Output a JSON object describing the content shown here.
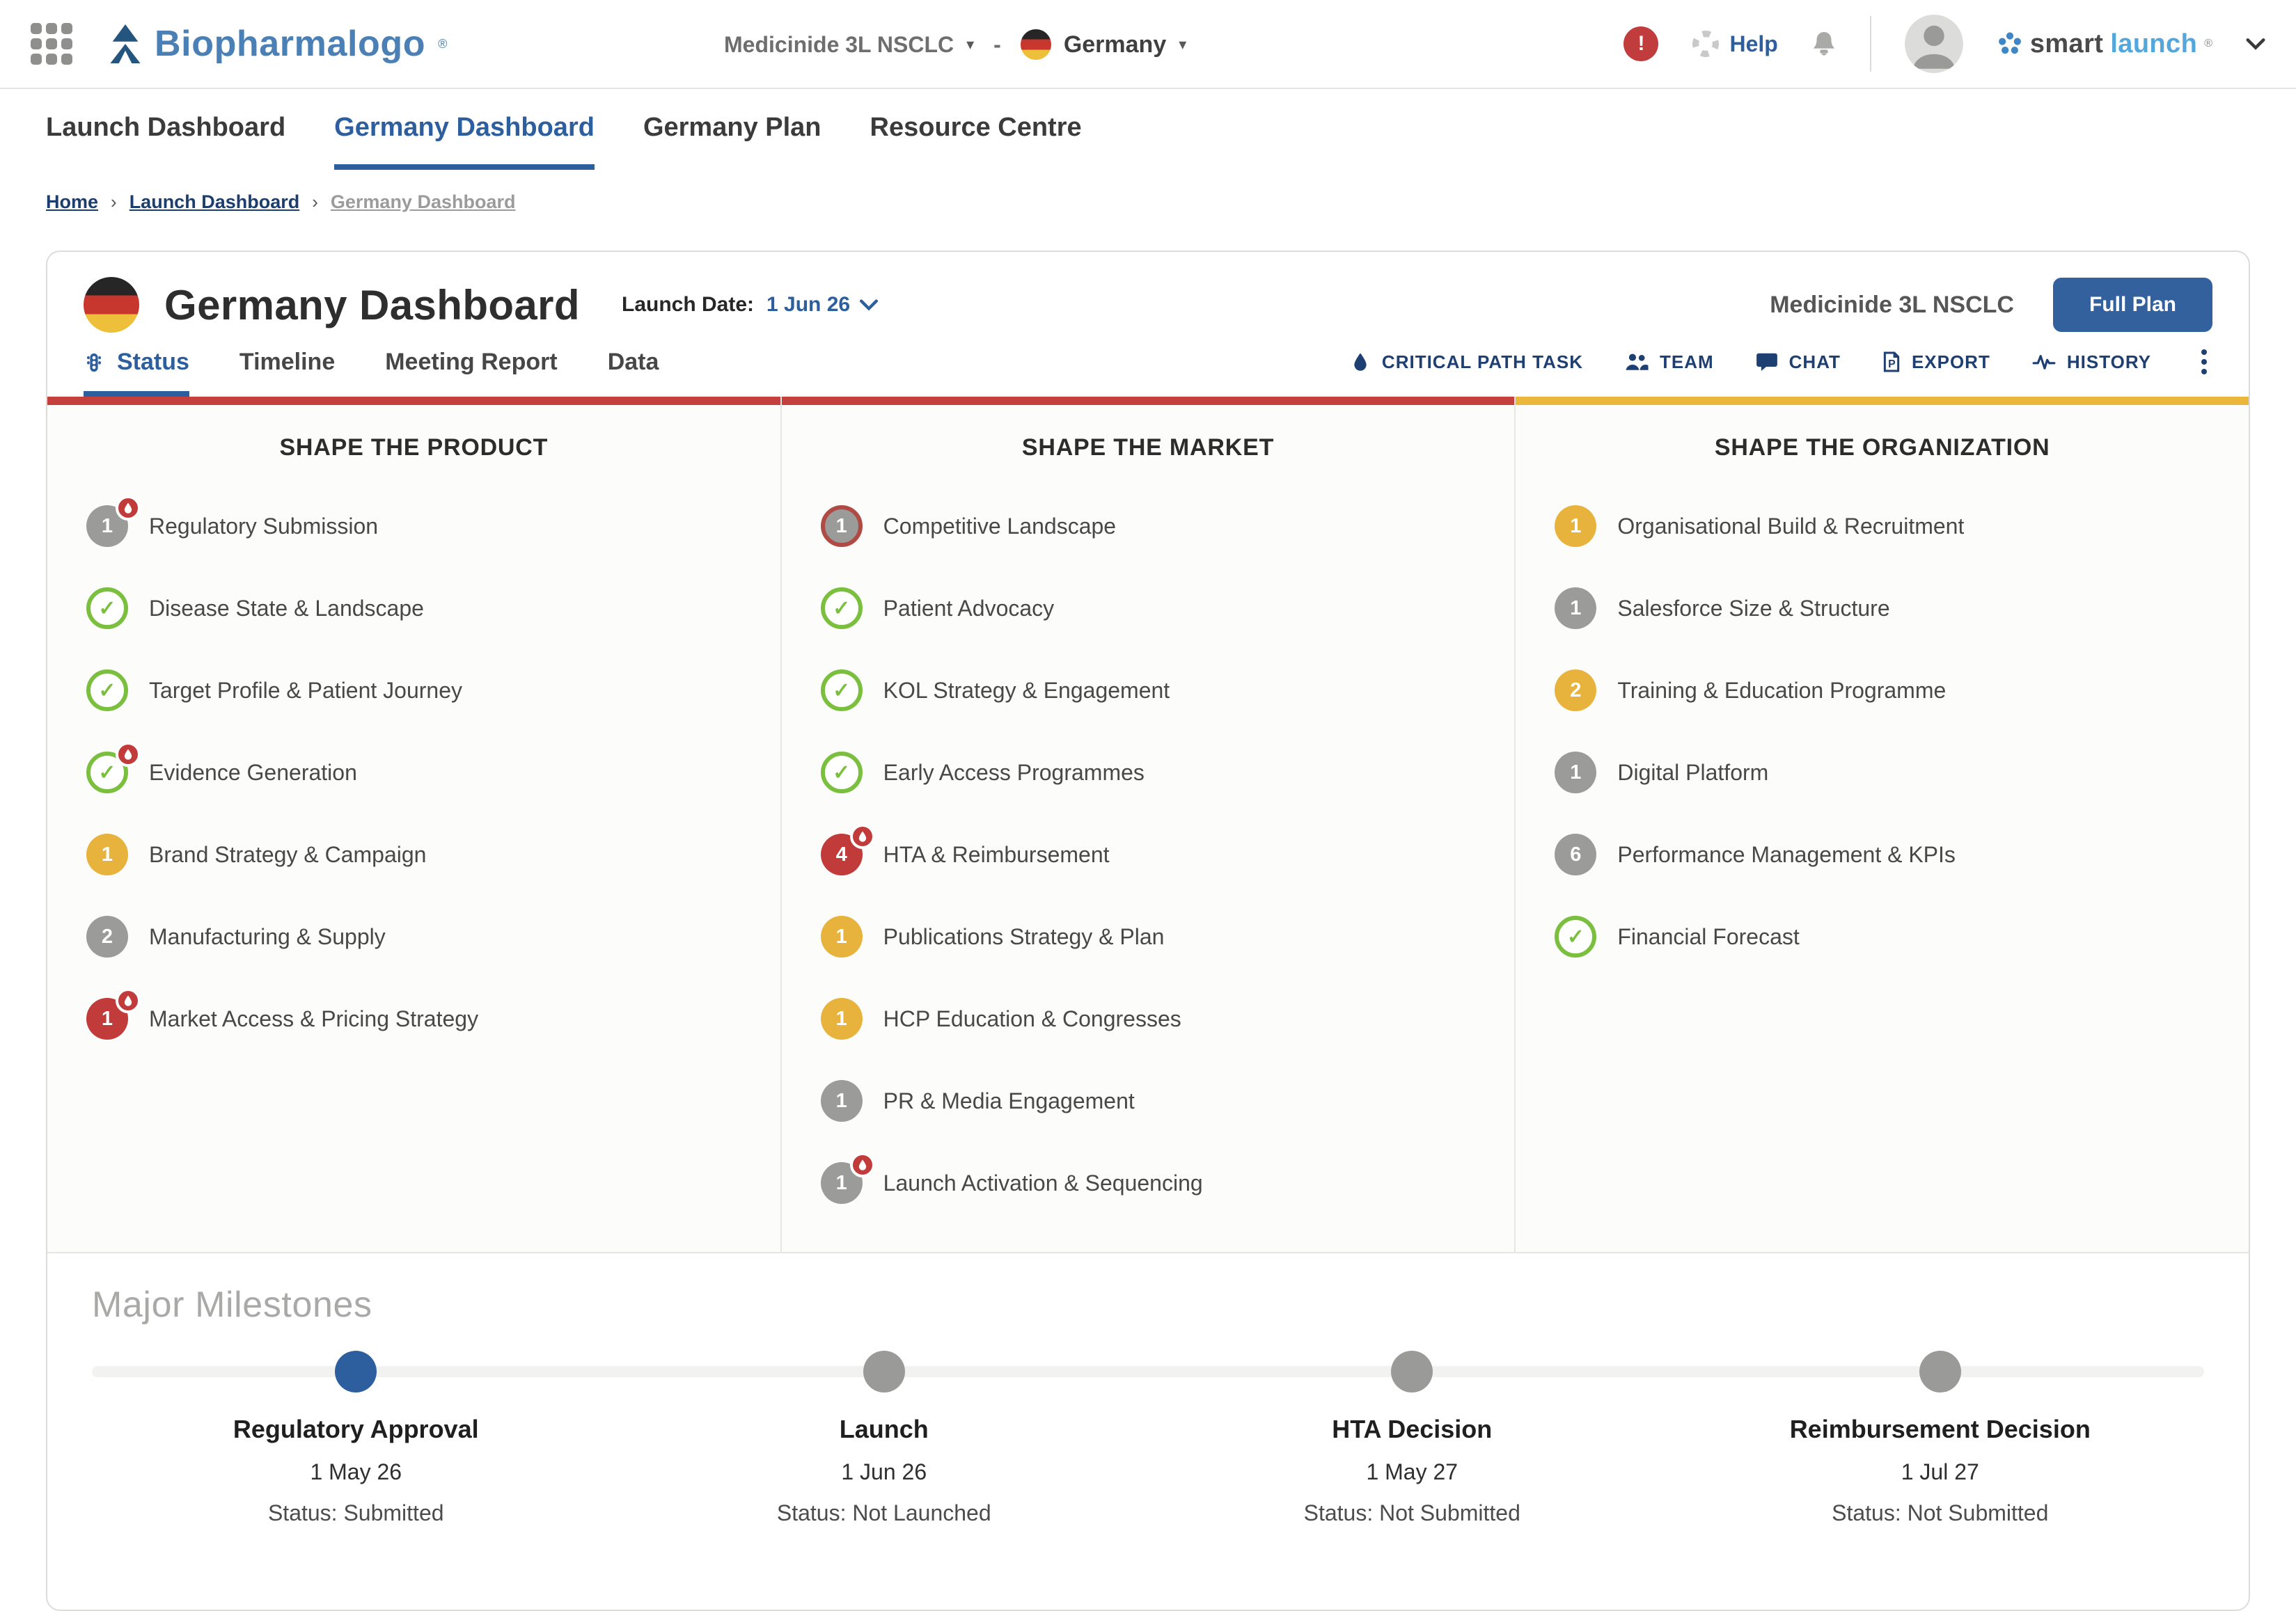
{
  "header": {
    "brand": "Biopharmalogo",
    "brand_registered": "®",
    "product_selector": "Medicinide 3L NSCLC",
    "separator": "-",
    "country_selector": "Germany",
    "help_label": "Help",
    "smartlaunch": {
      "smart": "smart",
      "launch": "launch",
      "registered": "®"
    }
  },
  "nav": {
    "tabs": [
      {
        "label": "Launch Dashboard",
        "active": false
      },
      {
        "label": "Germany Dashboard",
        "active": true
      },
      {
        "label": "Germany Plan",
        "active": false
      },
      {
        "label": "Resource Centre",
        "active": false
      }
    ]
  },
  "breadcrumb": {
    "separator": "›",
    "items": [
      {
        "label": "Home",
        "current": false
      },
      {
        "label": "Launch Dashboard",
        "current": false
      },
      {
        "label": "Germany Dashboard",
        "current": true
      }
    ]
  },
  "dashboard": {
    "title": "Germany Dashboard",
    "launch_date_label": "Launch Date:",
    "launch_date_value": "1 Jun 26",
    "product_name": "Medicinide 3L NSCLC",
    "full_plan_button": "Full Plan",
    "tabs": [
      {
        "label": "Status",
        "active": true,
        "icon": "traffic-light"
      },
      {
        "label": "Timeline",
        "active": false
      },
      {
        "label": "Meeting Report",
        "active": false
      },
      {
        "label": "Data",
        "active": false
      }
    ],
    "actions": [
      {
        "label": "CRITICAL PATH TASK",
        "icon": "flame"
      },
      {
        "label": "TEAM",
        "icon": "team"
      },
      {
        "label": "CHAT",
        "icon": "chat"
      },
      {
        "label": "EXPORT",
        "icon": "export"
      },
      {
        "label": "HISTORY",
        "icon": "history"
      }
    ]
  },
  "columns": [
    {
      "title": "SHAPE THE PRODUCT",
      "accent": "#c4403c",
      "items": [
        {
          "label": "Regulatory Submission",
          "badge": {
            "type": "count",
            "value": "1",
            "color": "gray",
            "critical": true
          }
        },
        {
          "label": "Disease State & Landscape",
          "badge": {
            "type": "check"
          }
        },
        {
          "label": "Target Profile & Patient Journey",
          "badge": {
            "type": "check"
          }
        },
        {
          "label": "Evidence Generation",
          "badge": {
            "type": "check",
            "critical": true
          }
        },
        {
          "label": "Brand Strategy & Campaign",
          "badge": {
            "type": "count",
            "value": "1",
            "color": "yellow"
          }
        },
        {
          "label": "Manufacturing & Supply",
          "badge": {
            "type": "count",
            "value": "2",
            "color": "gray"
          }
        },
        {
          "label": "Market Access & Pricing Strategy",
          "badge": {
            "type": "count",
            "value": "1",
            "color": "red",
            "critical": true
          }
        }
      ]
    },
    {
      "title": "SHAPE THE MARKET",
      "accent": "#c4403c",
      "items": [
        {
          "label": "Competitive Landscape",
          "badge": {
            "type": "count",
            "value": "1",
            "color": "gray",
            "ring": "red"
          }
        },
        {
          "label": "Patient Advocacy",
          "badge": {
            "type": "check"
          }
        },
        {
          "label": "KOL Strategy & Engagement",
          "badge": {
            "type": "check"
          }
        },
        {
          "label": "Early Access Programmes",
          "badge": {
            "type": "check"
          }
        },
        {
          "label": "HTA & Reimbursement",
          "badge": {
            "type": "count",
            "value": "4",
            "color": "red",
            "critical": true
          }
        },
        {
          "label": "Publications Strategy & Plan",
          "badge": {
            "type": "count",
            "value": "1",
            "color": "yellow"
          }
        },
        {
          "label": "HCP Education & Congresses",
          "badge": {
            "type": "count",
            "value": "1",
            "color": "yellow"
          }
        },
        {
          "label": "PR & Media Engagement",
          "badge": {
            "type": "count",
            "value": "1",
            "color": "gray"
          }
        },
        {
          "label": "Launch Activation & Sequencing",
          "badge": {
            "type": "count",
            "value": "1",
            "color": "gray",
            "critical": true
          }
        }
      ]
    },
    {
      "title": "SHAPE THE ORGANIZATION",
      "accent": "#eab63b",
      "items": [
        {
          "label": "Organisational Build & Recruitment",
          "badge": {
            "type": "count",
            "value": "1",
            "color": "yellow"
          }
        },
        {
          "label": "Salesforce Size & Structure",
          "badge": {
            "type": "count",
            "value": "1",
            "color": "gray"
          }
        },
        {
          "label": "Training & Education Programme",
          "badge": {
            "type": "count",
            "value": "2",
            "color": "yellow"
          }
        },
        {
          "label": "Digital Platform",
          "badge": {
            "type": "count",
            "value": "1",
            "color": "gray"
          }
        },
        {
          "label": "Performance Management & KPIs",
          "badge": {
            "type": "count",
            "value": "6",
            "color": "gray"
          }
        },
        {
          "label": "Financial Forecast",
          "badge": {
            "type": "check"
          }
        }
      ]
    }
  ],
  "milestones": {
    "title": "Major Milestones",
    "items": [
      {
        "name": "Regulatory Approval",
        "date": "1 May 26",
        "status": "Status: Submitted",
        "dot": "blue"
      },
      {
        "name": "Launch",
        "date": "1 Jun 26",
        "status": "Status: Not Launched",
        "dot": "gray"
      },
      {
        "name": "HTA Decision",
        "date": "1 May 27",
        "status": "Status: Not Submitted",
        "dot": "gray"
      },
      {
        "name": "Reimbursement Decision",
        "date": "1 Jul 27",
        "status": "Status: Not Submitted",
        "dot": "gray"
      }
    ]
  },
  "colors": {
    "accent_red": "#c4403c",
    "accent_yellow": "#eab63b",
    "badge_gray": "#9b9b99",
    "badge_yellow": "#e8b33c",
    "badge_red": "#c23b3b",
    "check_green": "#7bbf3e",
    "navy": "#1d3f72",
    "link_blue": "#2d5f9e",
    "dot_blue": "#2d5f9e",
    "dot_gray": "#9a9a98"
  }
}
